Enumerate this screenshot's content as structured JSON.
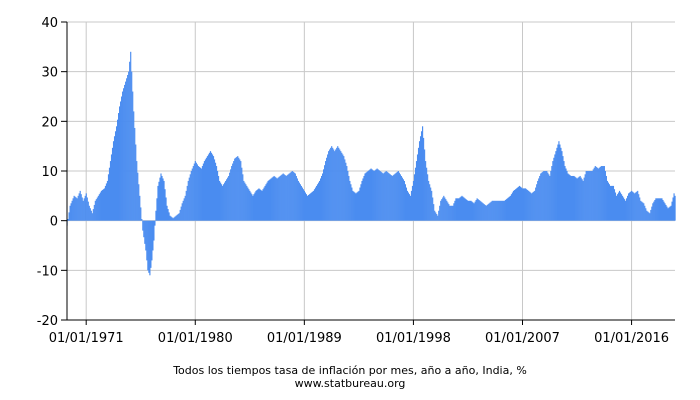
{
  "chart_data": {
    "type": "bar",
    "title": "",
    "xlabel": "",
    "ylabel": "",
    "ylim": [
      -20,
      40
    ],
    "xlim": [
      "1969-06",
      "2019-08"
    ],
    "y_ticks": [
      -20,
      -10,
      0,
      10,
      20,
      30,
      40
    ],
    "x_tick_labels": [
      {
        "date": "1971-01",
        "label": "01/01/1971"
      },
      {
        "date": "1980-01",
        "label": "01/01/1980"
      },
      {
        "date": "1989-01",
        "label": "01/01/1989"
      },
      {
        "date": "1998-01",
        "label": "01/01/1998"
      },
      {
        "date": "2007-01",
        "label": "01/01/2007"
      },
      {
        "date": "2016-01",
        "label": "01/01/2016"
      }
    ],
    "grid": true,
    "bar_color": "#4a8cf0",
    "series": [
      {
        "points": [
          [
            "1969-06",
            -1.0
          ],
          [
            "1969-09",
            3.0
          ],
          [
            "1970-01",
            5.0
          ],
          [
            "1970-04",
            4.5
          ],
          [
            "1970-07",
            6.0
          ],
          [
            "1970-10",
            4.0
          ],
          [
            "1971-01",
            5.5
          ],
          [
            "1971-04",
            3.0
          ],
          [
            "1971-07",
            1.5
          ],
          [
            "1971-10",
            4.0
          ],
          [
            "1972-01",
            5.0
          ],
          [
            "1972-04",
            6.0
          ],
          [
            "1972-07",
            6.5
          ],
          [
            "1972-10",
            8.0
          ],
          [
            "1973-01",
            12.0
          ],
          [
            "1973-04",
            16.0
          ],
          [
            "1973-07",
            19.0
          ],
          [
            "1973-10",
            23.0
          ],
          [
            "1974-01",
            26.0
          ],
          [
            "1974-04",
            28.0
          ],
          [
            "1974-07",
            30.0
          ],
          [
            "1974-09",
            34.0
          ],
          [
            "1974-12",
            22.0
          ],
          [
            "1975-03",
            12.0
          ],
          [
            "1975-06",
            5.0
          ],
          [
            "1975-09",
            -2.0
          ],
          [
            "1975-12",
            -6.0
          ],
          [
            "1976-02",
            -10.0
          ],
          [
            "1976-04",
            -11.0
          ],
          [
            "1976-06",
            -8.0
          ],
          [
            "1976-08",
            -4.0
          ],
          [
            "1976-10",
            2.0
          ],
          [
            "1976-12",
            7.0
          ],
          [
            "1977-03",
            9.5
          ],
          [
            "1977-06",
            8.0
          ],
          [
            "1977-09",
            3.0
          ],
          [
            "1977-12",
            1.0
          ],
          [
            "1978-03",
            0.5
          ],
          [
            "1978-06",
            1.0
          ],
          [
            "1978-09",
            1.5
          ],
          [
            "1978-12",
            3.5
          ],
          [
            "1979-03",
            5.0
          ],
          [
            "1979-06",
            8.0
          ],
          [
            "1979-09",
            10.0
          ],
          [
            "1980-01",
            12.0
          ],
          [
            "1980-04",
            11.0
          ],
          [
            "1980-07",
            10.5
          ],
          [
            "1980-10",
            12.0
          ],
          [
            "1981-01",
            13.0
          ],
          [
            "1981-04",
            14.0
          ],
          [
            "1981-07",
            13.0
          ],
          [
            "1981-10",
            11.0
          ],
          [
            "1982-01",
            8.0
          ],
          [
            "1982-04",
            7.0
          ],
          [
            "1982-07",
            8.0
          ],
          [
            "1982-10",
            9.0
          ],
          [
            "1983-01",
            11.0
          ],
          [
            "1983-04",
            12.5
          ],
          [
            "1983-07",
            13.0
          ],
          [
            "1983-10",
            12.0
          ],
          [
            "1984-01",
            8.0
          ],
          [
            "1984-04",
            7.0
          ],
          [
            "1984-07",
            6.0
          ],
          [
            "1984-10",
            5.0
          ],
          [
            "1985-01",
            6.0
          ],
          [
            "1985-04",
            6.5
          ],
          [
            "1985-07",
            6.0
          ],
          [
            "1985-10",
            7.0
          ],
          [
            "1986-01",
            8.0
          ],
          [
            "1986-04",
            8.5
          ],
          [
            "1986-07",
            9.0
          ],
          [
            "1986-10",
            8.5
          ],
          [
            "1987-01",
            9.0
          ],
          [
            "1987-04",
            9.5
          ],
          [
            "1987-07",
            9.0
          ],
          [
            "1987-10",
            9.5
          ],
          [
            "1988-01",
            10.0
          ],
          [
            "1988-04",
            9.5
          ],
          [
            "1988-07",
            8.0
          ],
          [
            "1988-10",
            7.0
          ],
          [
            "1989-01",
            6.0
          ],
          [
            "1989-04",
            5.0
          ],
          [
            "1989-07",
            5.5
          ],
          [
            "1989-10",
            6.0
          ],
          [
            "1990-01",
            7.0
          ],
          [
            "1990-04",
            8.0
          ],
          [
            "1990-07",
            9.5
          ],
          [
            "1990-10",
            12.0
          ],
          [
            "1991-01",
            14.0
          ],
          [
            "1991-04",
            15.0
          ],
          [
            "1991-07",
            14.0
          ],
          [
            "1991-10",
            15.0
          ],
          [
            "1992-01",
            14.0
          ],
          [
            "1992-04",
            13.0
          ],
          [
            "1992-07",
            11.0
          ],
          [
            "1992-10",
            8.0
          ],
          [
            "1993-01",
            6.0
          ],
          [
            "1993-04",
            5.5
          ],
          [
            "1993-07",
            6.0
          ],
          [
            "1993-10",
            8.0
          ],
          [
            "1994-01",
            9.5
          ],
          [
            "1994-04",
            10.0
          ],
          [
            "1994-07",
            10.5
          ],
          [
            "1994-10",
            10.0
          ],
          [
            "1995-01",
            10.5
          ],
          [
            "1995-04",
            10.0
          ],
          [
            "1995-07",
            9.5
          ],
          [
            "1995-10",
            10.0
          ],
          [
            "1996-01",
            9.5
          ],
          [
            "1996-04",
            9.0
          ],
          [
            "1996-07",
            9.5
          ],
          [
            "1996-10",
            10.0
          ],
          [
            "1997-01",
            9.0
          ],
          [
            "1997-04",
            8.0
          ],
          [
            "1997-07",
            6.0
          ],
          [
            "1997-10",
            5.0
          ],
          [
            "1998-01",
            8.0
          ],
          [
            "1998-04",
            12.0
          ],
          [
            "1998-07",
            16.0
          ],
          [
            "1998-10",
            19.0
          ],
          [
            "1999-01",
            12.0
          ],
          [
            "1999-04",
            8.0
          ],
          [
            "1999-07",
            6.0
          ],
          [
            "1999-10",
            2.0
          ],
          [
            "2000-01",
            1.0
          ],
          [
            "2000-04",
            4.0
          ],
          [
            "2000-07",
            5.0
          ],
          [
            "2000-10",
            4.0
          ],
          [
            "2001-01",
            3.0
          ],
          [
            "2001-04",
            3.0
          ],
          [
            "2001-07",
            4.5
          ],
          [
            "2001-10",
            4.5
          ],
          [
            "2002-01",
            5.0
          ],
          [
            "2002-04",
            4.5
          ],
          [
            "2002-07",
            4.0
          ],
          [
            "2002-10",
            4.0
          ],
          [
            "2003-01",
            3.5
          ],
          [
            "2003-04",
            4.5
          ],
          [
            "2003-07",
            4.0
          ],
          [
            "2003-10",
            3.5
          ],
          [
            "2004-01",
            3.0
          ],
          [
            "2004-04",
            3.5
          ],
          [
            "2004-07",
            4.0
          ],
          [
            "2004-10",
            4.0
          ],
          [
            "2005-01",
            4.0
          ],
          [
            "2005-04",
            4.0
          ],
          [
            "2005-07",
            4.0
          ],
          [
            "2005-10",
            4.5
          ],
          [
            "2006-01",
            5.0
          ],
          [
            "2006-04",
            6.0
          ],
          [
            "2006-07",
            6.5
          ],
          [
            "2006-10",
            7.0
          ],
          [
            "2007-01",
            6.5
          ],
          [
            "2007-04",
            6.5
          ],
          [
            "2007-07",
            6.0
          ],
          [
            "2007-10",
            5.5
          ],
          [
            "2008-01",
            6.0
          ],
          [
            "2008-04",
            8.0
          ],
          [
            "2008-07",
            9.5
          ],
          [
            "2008-10",
            10.0
          ],
          [
            "2009-01",
            10.0
          ],
          [
            "2009-04",
            9.0
          ],
          [
            "2009-07",
            12.0
          ],
          [
            "2009-10",
            14.0
          ],
          [
            "2010-01",
            16.0
          ],
          [
            "2010-04",
            14.0
          ],
          [
            "2010-07",
            11.0
          ],
          [
            "2010-10",
            9.5
          ],
          [
            "2011-01",
            9.0
          ],
          [
            "2011-04",
            9.0
          ],
          [
            "2011-07",
            8.5
          ],
          [
            "2011-10",
            9.0
          ],
          [
            "2012-01",
            8.0
          ],
          [
            "2012-04",
            10.0
          ],
          [
            "2012-07",
            10.0
          ],
          [
            "2012-10",
            10.0
          ],
          [
            "2013-01",
            11.0
          ],
          [
            "2013-04",
            10.5
          ],
          [
            "2013-07",
            11.0
          ],
          [
            "2013-10",
            11.0
          ],
          [
            "2014-01",
            8.0
          ],
          [
            "2014-04",
            7.0
          ],
          [
            "2014-07",
            7.0
          ],
          [
            "2014-10",
            5.0
          ],
          [
            "2015-01",
            6.0
          ],
          [
            "2015-04",
            5.0
          ],
          [
            "2015-07",
            4.0
          ],
          [
            "2015-10",
            5.5
          ],
          [
            "2016-01",
            6.0
          ],
          [
            "2016-04",
            5.5
          ],
          [
            "2016-07",
            6.0
          ],
          [
            "2016-10",
            4.0
          ],
          [
            "2017-01",
            3.5
          ],
          [
            "2017-04",
            2.0
          ],
          [
            "2017-07",
            1.5
          ],
          [
            "2017-10",
            3.5
          ],
          [
            "2018-01",
            4.5
          ],
          [
            "2018-04",
            4.5
          ],
          [
            "2018-07",
            4.5
          ],
          [
            "2018-10",
            3.5
          ],
          [
            "2019-01",
            2.5
          ],
          [
            "2019-04",
            3.0
          ],
          [
            "2019-07",
            5.5
          ],
          [
            "2019-08",
            5.0
          ]
        ]
      }
    ],
    "caption": "Todos los tiempos tasa de inflación por mes, año a año, India, %",
    "source": "www.statbureau.org"
  }
}
